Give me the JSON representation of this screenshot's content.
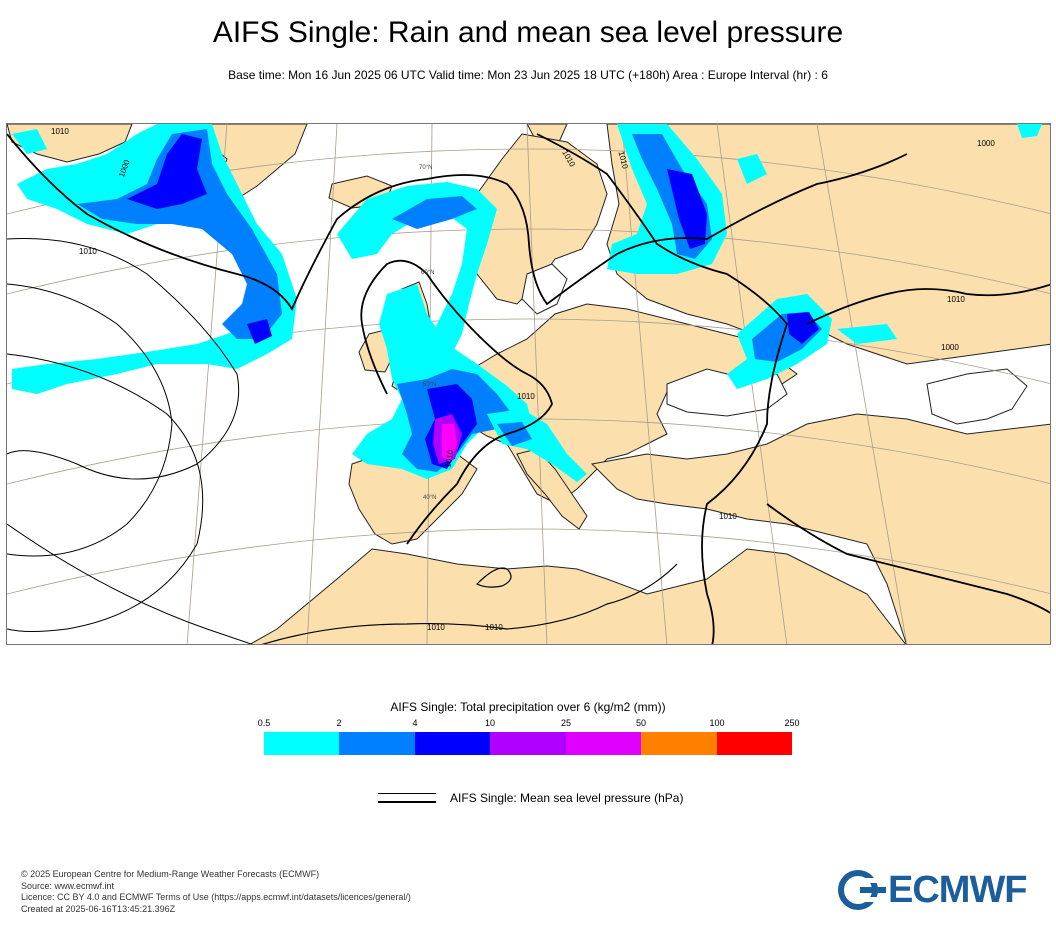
{
  "header": {
    "title": "AIFS Single: Rain and mean sea level pressure",
    "subtitle": "Base time: Mon 16 Jun 2025 06 UTC Valid time: Mon 23 Jun 2025 18 UTC (+180h) Area : Europe Interval (hr) : 6"
  },
  "map": {
    "colors": {
      "land": "#fbdfac",
      "sea": "#ffffff",
      "coast": "#222222",
      "graticule": "#a89d8b"
    },
    "isobar_labels": [
      "1010",
      "1000",
      "1010",
      "1010",
      "1010",
      "1000",
      "1010",
      "1010",
      "1010",
      "1000",
      "1010",
      "1010",
      "1010"
    ],
    "graticule_labels": [
      "70°N",
      "60°N",
      "50°N",
      "40°N"
    ]
  },
  "legend": {
    "title": "AIFS Single: Total precipitation over 6 (kg/m2 (mm))",
    "ticks": [
      "0.5",
      "2",
      "4",
      "10",
      "25",
      "50",
      "100",
      "250"
    ],
    "colors": [
      "#00ffff",
      "#0080ff",
      "#0000ff",
      "#b000ff",
      "#e000ff",
      "#ff00ff",
      "#ff8000",
      "#ff0000"
    ],
    "mslp_label": "AIFS Single: Mean sea level pressure (hPa)"
  },
  "footer": {
    "lines": [
      "© 2025 European Centre for Medium-Range Weather Forecasts (ECMWF)",
      "Source: www.ecmwf.int",
      "Licence: CC BY 4.0 and ECMWF Terms of Use (https://apps.ecmwf.int/datasets/licences/general/)",
      "Created at 2025-06-16T13:45:21.396Z"
    ]
  },
  "logo": {
    "text": "ECMWF",
    "icon": "ecmwf-logo-icon",
    "color": "#1b5e9b"
  }
}
